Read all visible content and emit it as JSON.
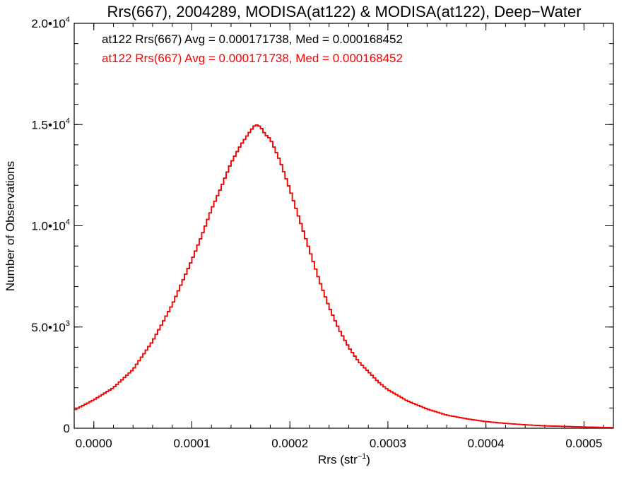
{
  "chart_data": {
    "type": "line",
    "title": "Rrs(667), 2004289, MODISA(at122) & MODISA(at122), Deep−Water",
    "xlabel": "Rrs (str",
    "xlabel_sup": "−1",
    "xlabel_end": ")",
    "ylabel": "Number of Observations",
    "xlim": [
      -2e-05,
      0.00053
    ],
    "ylim": [
      0,
      20000
    ],
    "x_ticks": [
      {
        "value": 0.0,
        "label": "0.0000"
      },
      {
        "value": 0.0001,
        "label": "0.0001"
      },
      {
        "value": 0.0002,
        "label": "0.0002"
      },
      {
        "value": 0.0003,
        "label": "0.0003"
      },
      {
        "value": 0.0004,
        "label": "0.0004"
      },
      {
        "value": 0.0005,
        "label": "0.0005"
      }
    ],
    "y_ticks": [
      {
        "value": 0,
        "label": "0",
        "exp": ""
      },
      {
        "value": 5000,
        "label": "5.0•10",
        "exp": "3"
      },
      {
        "value": 10000,
        "label": "1.0•10",
        "exp": "4"
      },
      {
        "value": 15000,
        "label": "1.5•10",
        "exp": "4"
      },
      {
        "value": 20000,
        "label": "2.0•10",
        "exp": "4"
      }
    ],
    "annotations": [
      {
        "text": "at122 Rrs(667) Avg = 0.000171738, Med = 0.000168452",
        "color": "#000000"
      },
      {
        "text": "at122 Rrs(667) Avg = 0.000171738, Med = 0.000168452",
        "color": "#ff0000"
      }
    ],
    "series": [
      {
        "color": "#000000",
        "x": [
          -2e-05,
          0.0,
          2e-05,
          4e-05,
          6e-05,
          8e-05,
          0.0001,
          0.00011,
          0.00012,
          0.00013,
          0.00014,
          0.00015,
          0.00016,
          0.000165,
          0.00017,
          0.000175,
          0.00018,
          0.00019,
          0.0002,
          0.00021,
          0.00022,
          0.00023,
          0.00024,
          0.00025,
          0.00026,
          0.00027,
          0.00028,
          0.00029,
          0.0003,
          0.00032,
          0.00034,
          0.00036,
          0.00038,
          0.0004,
          0.00042,
          0.00044,
          0.00046,
          0.00048,
          0.0005,
          0.00052,
          0.00053
        ],
        "y": [
          900,
          1400,
          2000,
          2900,
          4300,
          6100,
          8300,
          9500,
          10800,
          11900,
          13100,
          14000,
          14700,
          15000,
          14900,
          14500,
          14300,
          13200,
          11800,
          10300,
          8800,
          7300,
          6000,
          4900,
          4000,
          3300,
          2800,
          2300,
          1900,
          1350,
          950,
          650,
          470,
          330,
          240,
          170,
          120,
          90,
          60,
          40,
          30
        ]
      },
      {
        "color": "#ff0000",
        "x": [
          -2e-05,
          0.0,
          2e-05,
          4e-05,
          6e-05,
          8e-05,
          0.0001,
          0.00011,
          0.00012,
          0.00013,
          0.00014,
          0.00015,
          0.00016,
          0.000165,
          0.00017,
          0.000175,
          0.00018,
          0.00019,
          0.0002,
          0.00021,
          0.00022,
          0.00023,
          0.00024,
          0.00025,
          0.00026,
          0.00027,
          0.00028,
          0.00029,
          0.0003,
          0.00032,
          0.00034,
          0.00036,
          0.00038,
          0.0004,
          0.00042,
          0.00044,
          0.00046,
          0.00048,
          0.0005,
          0.00052,
          0.00053
        ],
        "y": [
          900,
          1400,
          2000,
          2900,
          4300,
          6100,
          8300,
          9500,
          10800,
          11900,
          13100,
          14000,
          14700,
          15000,
          14900,
          14500,
          14300,
          13200,
          11800,
          10300,
          8800,
          7300,
          6000,
          4900,
          4000,
          3300,
          2800,
          2300,
          1900,
          1350,
          950,
          650,
          470,
          330,
          240,
          170,
          120,
          90,
          60,
          40,
          30
        ]
      }
    ],
    "grid": false,
    "legend": "top-left"
  }
}
